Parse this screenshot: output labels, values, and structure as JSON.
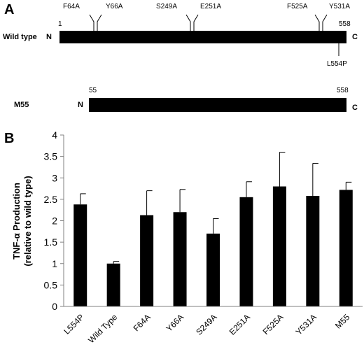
{
  "panel_a": {
    "letter": "A",
    "wild_type": {
      "name": "Wild type",
      "n_label": "N",
      "c_label": "C",
      "start": "1",
      "end": "558",
      "mutations_above": [
        "F64A",
        "Y66A",
        "S249A",
        "E251A",
        "F525A",
        "Y531A"
      ],
      "mutation_below": "L554P"
    },
    "m55": {
      "name": "M55",
      "n_label": "N",
      "c_label": "C",
      "start": "55",
      "end": "558"
    }
  },
  "panel_b": {
    "letter": "B"
  },
  "chart_data": {
    "type": "bar",
    "categories": [
      "L554P",
      "Wild Type",
      "F64A",
      "Y66A",
      "S249A",
      "E251A",
      "F525A",
      "Y531A",
      "M55"
    ],
    "series": [
      {
        "values": [
          2.38,
          1.0,
          2.13,
          2.2,
          1.7,
          2.55,
          2.8,
          2.58,
          2.72
        ],
        "errors": [
          0.25,
          0.05,
          0.57,
          0.53,
          0.35,
          0.36,
          0.8,
          0.76,
          0.18
        ]
      }
    ],
    "ylabel_line1": "TNF-α Production",
    "ylabel_line2": "(relative to wild type)",
    "xlabel": "",
    "ylim": [
      0,
      4
    ],
    "yticks": [
      "0",
      "0.5",
      "1",
      "1.5",
      "2",
      "2.5",
      "3",
      "3.5",
      "4"
    ],
    "grid": false,
    "bar_color": "#000000"
  }
}
